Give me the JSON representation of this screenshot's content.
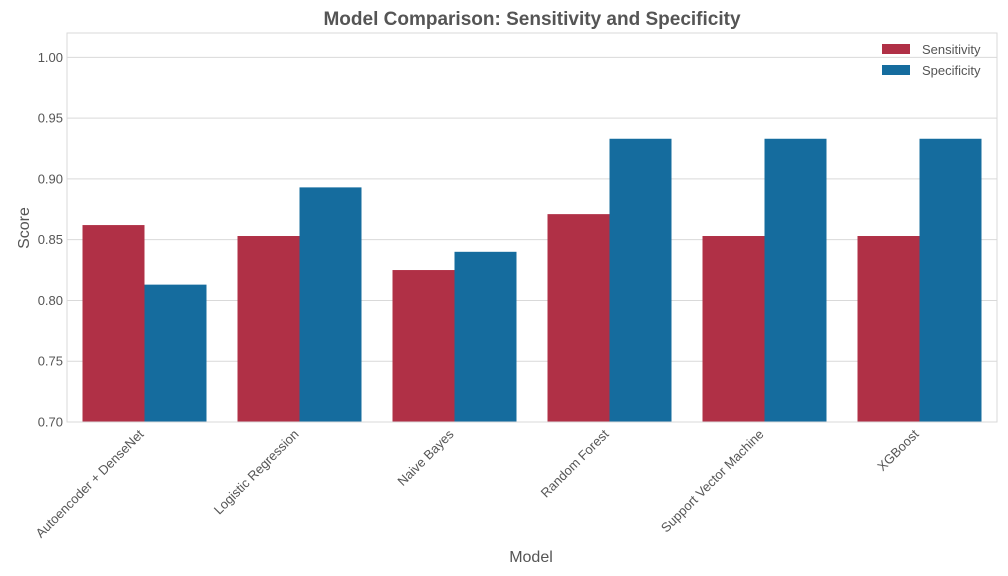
{
  "chart_data": {
    "type": "bar",
    "title": "Model Comparison: Sensitivity and Specificity",
    "xlabel": "Model",
    "ylabel": "Score",
    "categories": [
      "Autoencoder + DenseNet",
      "Logistic Regression",
      "Naive Bayes",
      "Random Forest",
      "Support Vector Machine",
      "XGBoost"
    ],
    "series": [
      {
        "name": "Sensitivity",
        "color": "#b03046",
        "values": [
          0.862,
          0.853,
          0.825,
          0.871,
          0.853,
          0.853
        ]
      },
      {
        "name": "Specificity",
        "color": "#156c9e",
        "values": [
          0.813,
          0.893,
          0.84,
          0.933,
          0.933,
          0.933
        ]
      }
    ],
    "ylim": [
      0.7,
      1.02
    ],
    "yticks": [
      "0.70",
      "0.75",
      "0.80",
      "0.85",
      "0.90",
      "0.95",
      "1.00"
    ],
    "grid": true,
    "legend_position": "top-right"
  }
}
